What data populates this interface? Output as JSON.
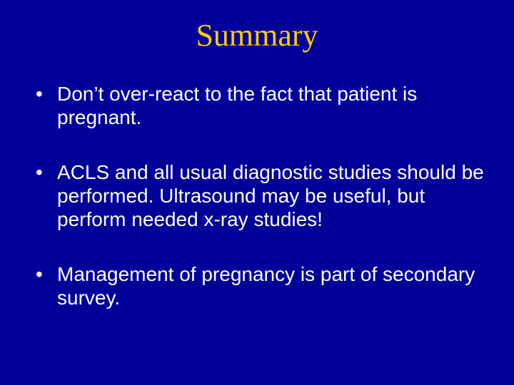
{
  "slide": {
    "title": "Summary",
    "bullets": [
      "Don’t over-react to the fact that patient is pregnant.",
      "ACLS and all usual diagnostic studies should be performed. Ultrasound may be useful, but perform needed x-ray studies!",
      "Management of pregnancy is part of secondary survey."
    ],
    "colors": {
      "background": "#000099",
      "title": "#ffcc00",
      "body_text": "#ffffff"
    },
    "typography": {
      "title_font": "Times New Roman",
      "title_size_pt": 36,
      "body_font": "Arial",
      "body_size_pt": 24
    }
  }
}
